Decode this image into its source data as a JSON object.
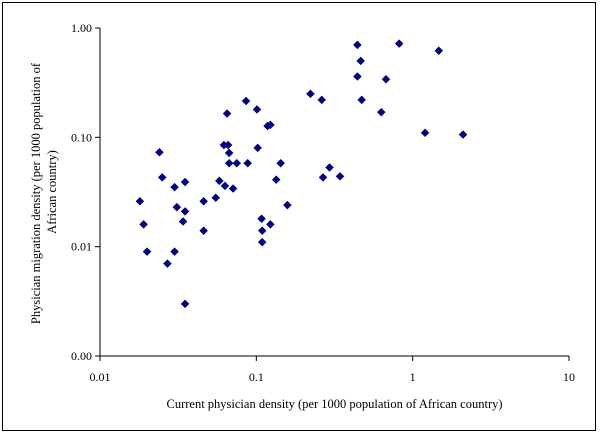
{
  "chart_data": {
    "type": "scatter",
    "title": "",
    "xlabel": "Current physician density (per 1000 population of African country)",
    "ylabel_lines": [
      "Physician migration density  (per 1000 population of",
      "African country)"
    ],
    "x_scale": "log",
    "y_scale": "log",
    "xlim": [
      0.01,
      10
    ],
    "ylim": [
      0.001,
      1
    ],
    "x_ticks": [
      0.01,
      0.1,
      1,
      10
    ],
    "x_tick_labels": [
      "0.01",
      "0.1",
      "1",
      "10"
    ],
    "y_ticks": [
      0.001,
      0.01,
      0.1,
      1
    ],
    "y_tick_labels": [
      "0.00",
      "0.01",
      "0.10",
      "1.00"
    ],
    "grid": false,
    "legend": "none",
    "marker_color": "#000080",
    "marker": "diamond",
    "points": [
      [
        0.018,
        0.026
      ],
      [
        0.019,
        0.016
      ],
      [
        0.02,
        0.009
      ],
      [
        0.024,
        0.073
      ],
      [
        0.025,
        0.043
      ],
      [
        0.027,
        0.007
      ],
      [
        0.03,
        0.009
      ],
      [
        0.03,
        0.035
      ],
      [
        0.031,
        0.023
      ],
      [
        0.034,
        0.017
      ],
      [
        0.035,
        0.021
      ],
      [
        0.035,
        0.039
      ],
      [
        0.035,
        0.003
      ],
      [
        0.046,
        0.026
      ],
      [
        0.046,
        0.014
      ],
      [
        0.055,
        0.028
      ],
      [
        0.058,
        0.04
      ],
      [
        0.062,
        0.085
      ],
      [
        0.063,
        0.036
      ],
      [
        0.065,
        0.165
      ],
      [
        0.066,
        0.085
      ],
      [
        0.067,
        0.072
      ],
      [
        0.067,
        0.058
      ],
      [
        0.071,
        0.034
      ],
      [
        0.075,
        0.058
      ],
      [
        0.086,
        0.215
      ],
      [
        0.088,
        0.058
      ],
      [
        0.101,
        0.18
      ],
      [
        0.102,
        0.08
      ],
      [
        0.108,
        0.018
      ],
      [
        0.109,
        0.014
      ],
      [
        0.109,
        0.011
      ],
      [
        0.118,
        0.127
      ],
      [
        0.123,
        0.13
      ],
      [
        0.123,
        0.016
      ],
      [
        0.134,
        0.041
      ],
      [
        0.143,
        0.058
      ],
      [
        0.158,
        0.024
      ],
      [
        0.222,
        0.25
      ],
      [
        0.262,
        0.22
      ],
      [
        0.267,
        0.043
      ],
      [
        0.294,
        0.053
      ],
      [
        0.343,
        0.044
      ],
      [
        0.443,
        0.7
      ],
      [
        0.443,
        0.36
      ],
      [
        0.465,
        0.5
      ],
      [
        0.472,
        0.22
      ],
      [
        0.63,
        0.17
      ],
      [
        0.675,
        0.34
      ],
      [
        0.82,
        0.72
      ],
      [
        1.2,
        0.11
      ],
      [
        1.47,
        0.62
      ],
      [
        2.1,
        0.106
      ]
    ]
  }
}
